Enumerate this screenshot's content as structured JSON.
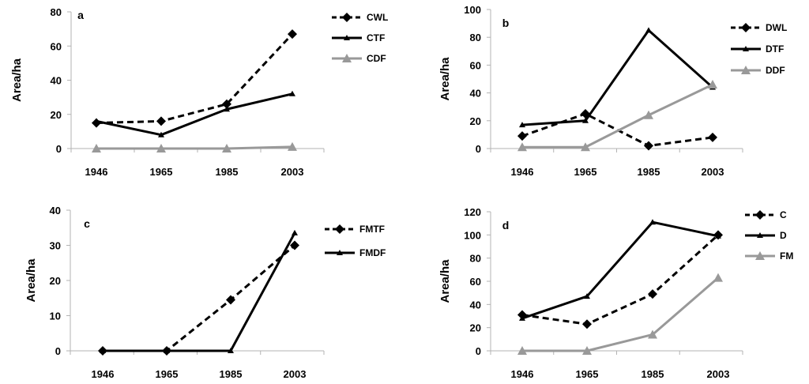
{
  "colors": {
    "axis": "#b3b3b3",
    "black": "#000000",
    "gray": "#999999"
  },
  "chart_data": [
    {
      "type": "line",
      "panel_label": "a",
      "ylabel": "Area/ha",
      "categories": [
        "1946",
        "1965",
        "1985",
        "2003"
      ],
      "ylim": [
        0,
        80
      ],
      "yticks": [
        0,
        20,
        40,
        60,
        80
      ],
      "legend_position": "top-right",
      "series": [
        {
          "name": "CWL",
          "style": "dashed",
          "color": "#000000",
          "marker": "diamond",
          "values": [
            15,
            16,
            26,
            67
          ]
        },
        {
          "name": "CTF",
          "style": "solid",
          "color": "#000000",
          "marker": "triangle-small",
          "values": [
            16,
            8,
            23,
            32
          ]
        },
        {
          "name": "CDF",
          "style": "solid",
          "color": "#999999",
          "marker": "triangle",
          "values": [
            0,
            0,
            0,
            1
          ]
        }
      ]
    },
    {
      "type": "line",
      "panel_label": "b",
      "ylabel": "Area/ha",
      "categories": [
        "1946",
        "1965",
        "1985",
        "2003"
      ],
      "ylim": [
        0,
        100
      ],
      "yticks": [
        0,
        20,
        40,
        60,
        80,
        100
      ],
      "legend_position": "top-right",
      "series": [
        {
          "name": "DWL",
          "style": "dashed",
          "color": "#000000",
          "marker": "diamond",
          "values": [
            9,
            25,
            2,
            8
          ]
        },
        {
          "name": "DTF",
          "style": "solid",
          "color": "#000000",
          "marker": "triangle-small",
          "values": [
            17,
            20,
            85,
            44
          ]
        },
        {
          "name": "DDF",
          "style": "solid",
          "color": "#999999",
          "marker": "triangle",
          "values": [
            1,
            1,
            24,
            46
          ]
        }
      ]
    },
    {
      "type": "line",
      "panel_label": "c",
      "ylabel": "Area/ha",
      "categories": [
        "1946",
        "1965",
        "1985",
        "2003"
      ],
      "ylim": [
        0,
        40
      ],
      "yticks": [
        0,
        10,
        20,
        30,
        40
      ],
      "legend_position": "top-right",
      "series": [
        {
          "name": "FMTF",
          "style": "dashed",
          "color": "#000000",
          "marker": "diamond",
          "values": [
            0,
            0,
            14.5,
            30
          ]
        },
        {
          "name": "FMDF",
          "style": "solid",
          "color": "#000000",
          "marker": "triangle-small",
          "values": [
            0,
            0,
            0,
            33.5
          ]
        }
      ]
    },
    {
      "type": "line",
      "panel_label": "d",
      "ylabel": "Area/ha",
      "categories": [
        "1946",
        "1965",
        "1985",
        "2003"
      ],
      "ylim": [
        0,
        120
      ],
      "yticks": [
        0,
        20,
        40,
        60,
        80,
        100,
        120
      ],
      "legend_position": "top-right",
      "series": [
        {
          "name": "C",
          "style": "dashed",
          "color": "#000000",
          "marker": "diamond",
          "values": [
            31,
            23,
            49,
            100
          ]
        },
        {
          "name": "D",
          "style": "solid",
          "color": "#000000",
          "marker": "triangle-small",
          "values": [
            28,
            47,
            111,
            99
          ]
        },
        {
          "name": "FM",
          "style": "solid",
          "color": "#999999",
          "marker": "triangle",
          "values": [
            0,
            0,
            14,
            63
          ]
        }
      ]
    }
  ]
}
